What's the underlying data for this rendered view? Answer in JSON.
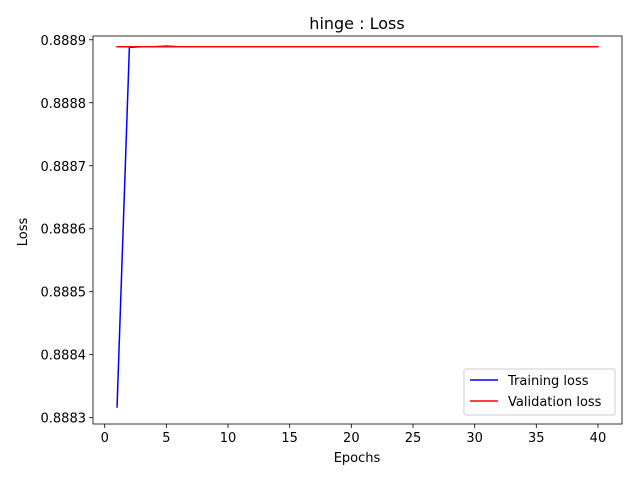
{
  "chart_data": {
    "type": "line",
    "title": "hinge : Loss",
    "xlabel": "Epochs",
    "ylabel": "Loss",
    "xlim": [
      -0.95,
      41.95
    ],
    "ylim": [
      0.88829,
      0.888906
    ],
    "xticks": [
      0,
      5,
      10,
      15,
      20,
      25,
      30,
      35,
      40
    ],
    "yticks": [
      0.8883,
      0.8884,
      0.8885,
      0.8886,
      0.8887,
      0.8888,
      0.8889
    ],
    "ytick_labels": [
      "0.8883",
      "0.8884",
      "0.8885",
      "0.8886",
      "0.8887",
      "0.8888",
      "0.8889"
    ],
    "legend_position": "lower-right",
    "grid": false,
    "series": [
      {
        "name": "Training loss",
        "color": "#0000ff",
        "x": [
          1,
          2,
          3,
          4,
          5,
          6,
          7,
          8,
          9,
          10,
          11,
          12,
          13,
          14,
          15,
          16,
          17,
          18,
          19,
          20,
          21,
          22,
          23,
          24,
          25,
          26,
          27,
          28,
          29,
          30,
          31,
          32,
          33,
          34,
          35,
          36,
          37,
          38,
          39,
          40
        ],
        "y": [
          0.888317,
          0.888888,
          0.888889,
          0.888889,
          0.88889,
          0.888889,
          0.888889,
          0.888889,
          0.888889,
          0.888889,
          0.888889,
          0.888889,
          0.888889,
          0.888889,
          0.888889,
          0.888889,
          0.888889,
          0.888889,
          0.888889,
          0.888889,
          0.888889,
          0.888889,
          0.888889,
          0.888889,
          0.888889,
          0.888889,
          0.888889,
          0.888889,
          0.888889,
          0.888889,
          0.888889,
          0.888889,
          0.888889,
          0.888889,
          0.888889,
          0.888889,
          0.888889,
          0.888889,
          0.888889,
          0.888889
        ]
      },
      {
        "name": "Validation loss",
        "color": "#ff0000",
        "x": [
          1,
          2,
          3,
          4,
          5,
          6,
          7,
          8,
          9,
          10,
          11,
          12,
          13,
          14,
          15,
          16,
          17,
          18,
          19,
          20,
          21,
          22,
          23,
          24,
          25,
          26,
          27,
          28,
          29,
          30,
          31,
          32,
          33,
          34,
          35,
          36,
          37,
          38,
          39,
          40
        ],
        "y": [
          0.888889,
          0.888889,
          0.888889,
          0.888889,
          0.888889,
          0.888889,
          0.888889,
          0.888889,
          0.888889,
          0.888889,
          0.888889,
          0.888889,
          0.888889,
          0.888889,
          0.888889,
          0.888889,
          0.888889,
          0.888889,
          0.888889,
          0.888889,
          0.888889,
          0.888889,
          0.888889,
          0.888889,
          0.888889,
          0.888889,
          0.888889,
          0.888889,
          0.888889,
          0.888889,
          0.888889,
          0.888889,
          0.888889,
          0.888889,
          0.888889,
          0.888889,
          0.888889,
          0.888889,
          0.888889,
          0.888889
        ]
      }
    ]
  }
}
